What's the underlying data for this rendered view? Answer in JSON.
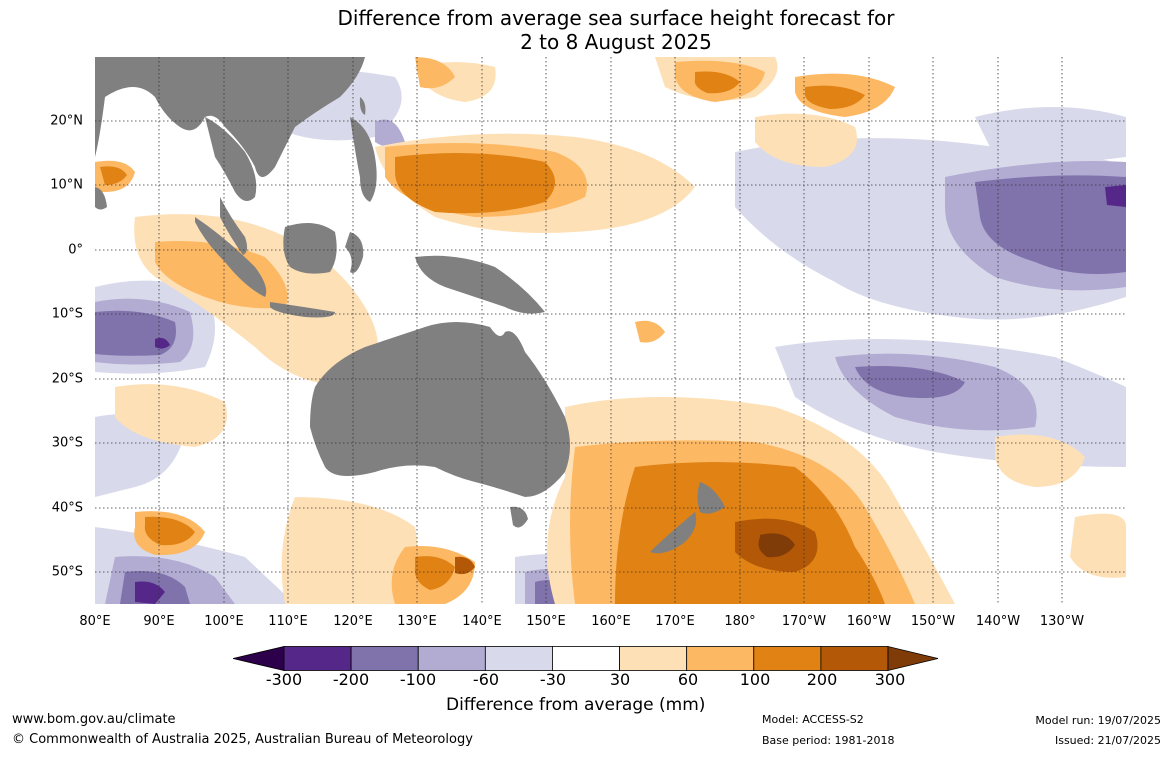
{
  "title_line1": "Difference from average sea surface height forecast for",
  "title_line2": "2 to 8 August 2025",
  "lat_labels": [
    "20°N",
    "10°N",
    "0°",
    "10°S",
    "20°S",
    "30°S",
    "40°S",
    "50°S"
  ],
  "lon_labels": [
    "80°E",
    "90°E",
    "100°E",
    "110°E",
    "120°E",
    "130°E",
    "140°E",
    "150°E",
    "160°E",
    "170°E",
    "180°",
    "170°W",
    "160°W",
    "150°W",
    "140°W",
    "130°W"
  ],
  "colorbar": {
    "ticks": [
      "-300",
      "-200",
      "-100",
      "-60",
      "-30",
      "30",
      "60",
      "100",
      "200",
      "300"
    ],
    "colors": [
      "#2d004b",
      "#542788",
      "#8073ac",
      "#b2abd2",
      "#d8daeb",
      "#ffffff",
      "#fee0b6",
      "#fdb863",
      "#e08214",
      "#b35806",
      "#7f3b08"
    ],
    "label": "Difference from average (mm)"
  },
  "footer": {
    "website": "www.bom.gov.au/climate",
    "copyright": "© Commonwealth of Australia 2025, Australian Bureau of Meteorology",
    "model": "Model: ACCESS-S2",
    "base_period": "Base period: 1981-2018",
    "model_run": "Model run: 19/07/2025",
    "issued": "Issued: 21/07/2025"
  },
  "colors": {
    "land": "#808080",
    "grid": "#333333"
  }
}
